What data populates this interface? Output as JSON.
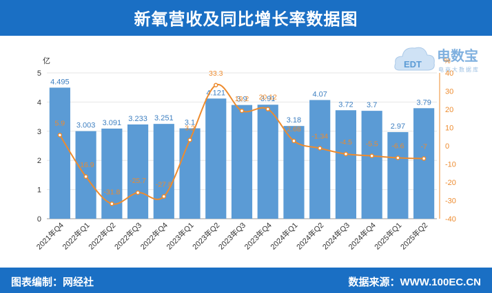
{
  "header": {
    "title": "新氧营收及同比增长率数据图"
  },
  "footer": {
    "left": "图表编制：网经社",
    "right": "数据来源：WWW.100EC.CN"
  },
  "logo": {
    "text": "电数宝",
    "sub": "电商大数据库",
    "badge": "EDT"
  },
  "colors": {
    "bar": "#5b9bd5",
    "line": "#ed8b2e",
    "header": "#1a6fc4"
  },
  "chart_data": {
    "type": "bar",
    "categories": [
      "2021年Q4",
      "2022年Q1",
      "2022年Q2",
      "2022年Q3",
      "2022年Q4",
      "2023年Q1",
      "2023年Q2",
      "2023年Q3",
      "2023年Q4",
      "2024年Q1",
      "2024年Q2",
      "2024年Q3",
      "2024年Q4",
      "2025年Q1",
      "2025年Q2"
    ],
    "series": [
      {
        "type": "bar",
        "axis": "left",
        "values": [
          4.495,
          3.003,
          3.091,
          3.233,
          3.251,
          3.1,
          4.121,
          3.9,
          3.91,
          3.18,
          4.07,
          3.72,
          3.7,
          2.97,
          3.79
        ]
      },
      {
        "type": "line",
        "axis": "right",
        "values": [
          5.9,
          -16.9,
          -31.8,
          -25.7,
          -27.8,
          3.2,
          33.3,
          19.2,
          20.12,
          2.68,
          -1.34,
          -4.5,
          -5.5,
          -6.6,
          -7
        ]
      }
    ],
    "bar_labels": [
      "4.495",
      "3.003",
      "3.091",
      "3.233",
      "3.251",
      "3.1",
      "4.121",
      "3.9",
      "3.91",
      "3.18",
      "4.07",
      "3.72",
      "3.7",
      "2.97",
      "3.79"
    ],
    "line_labels": [
      "5.9",
      "-16.9",
      "-31.8",
      "-25.7",
      "-27.8",
      "3.2",
      "33.3",
      "19.2",
      "20.12",
      "2.68",
      "-1.34",
      "-4.5",
      "-5.5",
      "-6.6",
      "-7"
    ],
    "ylabel_left": "亿",
    "ylabel_right": "%",
    "ylim_left": [
      0,
      5
    ],
    "ylim_right": [
      -40,
      40
    ],
    "yticks_left": [
      0,
      1,
      2,
      3,
      4,
      5
    ],
    "yticks_right": [
      -40,
      -30,
      -20,
      -10,
      0,
      10,
      20,
      30,
      40
    ],
    "grid": true
  }
}
